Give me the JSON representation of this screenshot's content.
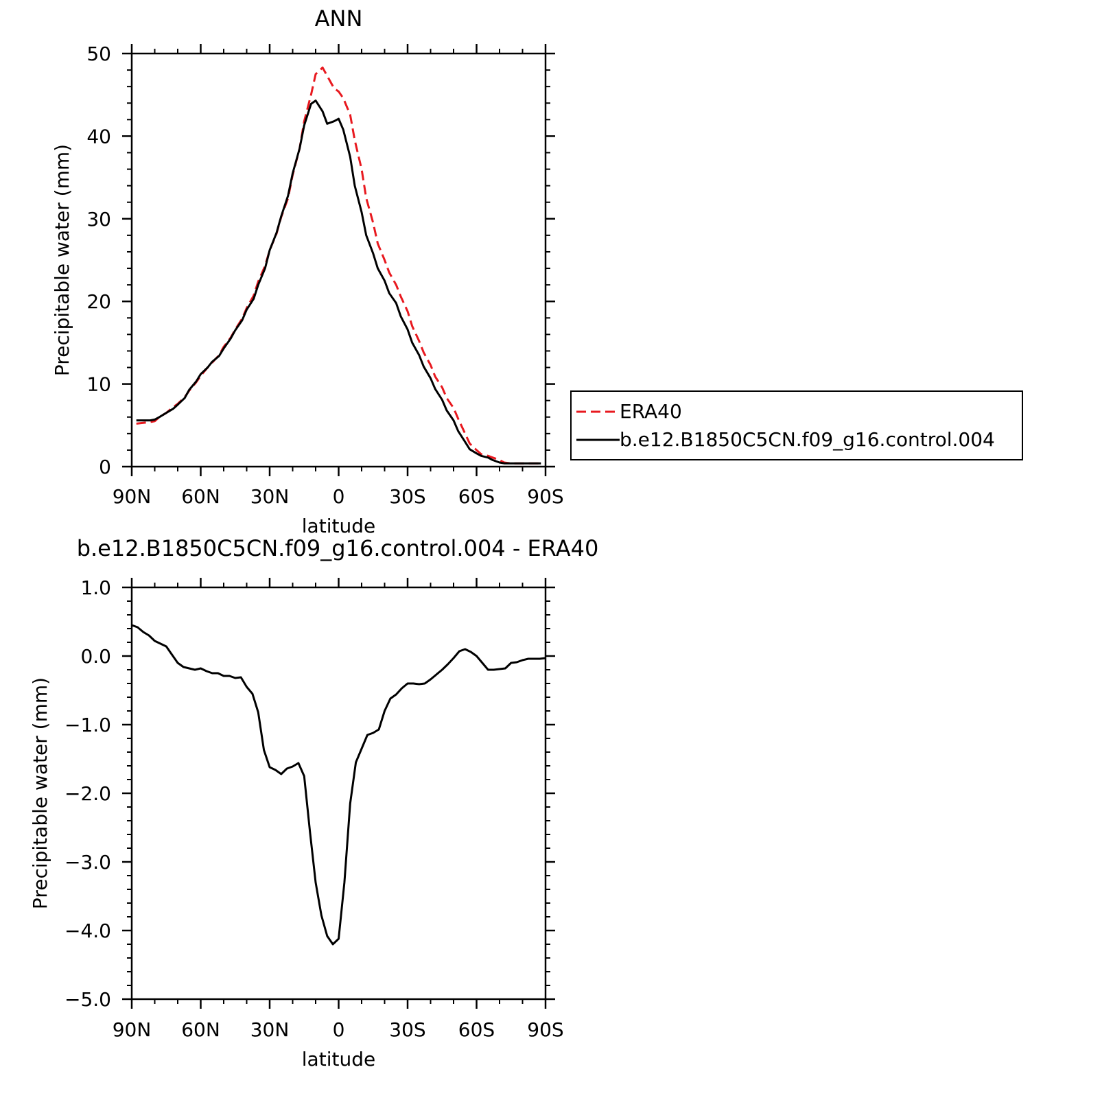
{
  "chart_data": [
    {
      "type": "line",
      "title": "ANN",
      "xlabel": "latitude",
      "ylabel": "Precipitable water (mm)",
      "xlim": [
        90,
        -90
      ],
      "ylim": [
        0,
        50
      ],
      "x_ticks": [
        90,
        60,
        30,
        0,
        -30,
        -60,
        -90
      ],
      "x_tick_labels": [
        "90N",
        "60N",
        "30N",
        "0",
        "30S",
        "60S",
        "90S"
      ],
      "y_ticks": [
        0,
        10,
        20,
        30,
        40,
        50
      ],
      "y_tick_labels": [
        "0",
        "10",
        "20",
        "30",
        "40",
        "50"
      ],
      "legend_position": "right",
      "series": [
        {
          "name": "ERA40",
          "color": "#e8191f",
          "dash": "dashed",
          "x": [
            88,
            85,
            82,
            80,
            78,
            75,
            72,
            70,
            67,
            65,
            62,
            60,
            57,
            55,
            52,
            50,
            47,
            45,
            42,
            40,
            37,
            35,
            32,
            30,
            27,
            25,
            22,
            20,
            17,
            15,
            12,
            10,
            7,
            5,
            2,
            0,
            -2,
            -5,
            -7,
            -10,
            -12,
            -15,
            -17,
            -20,
            -22,
            -25,
            -27,
            -30,
            -32,
            -35,
            -37,
            -40,
            -42,
            -45,
            -47,
            -50,
            -52,
            -55,
            -57,
            -60,
            -62,
            -65,
            -67,
            -70,
            -72,
            -75,
            -77,
            -80,
            -82,
            -85,
            -88
          ],
          "values": [
            5.2,
            5.3,
            5.4,
            5.5,
            6.0,
            6.5,
            7.2,
            7.6,
            8.4,
            9.2,
            10.2,
            11.0,
            12.0,
            12.6,
            13.5,
            14.5,
            15.6,
            16.6,
            17.9,
            19.2,
            20.7,
            22.4,
            24.3,
            26.2,
            28.2,
            30.2,
            32.5,
            35.3,
            38.5,
            41.8,
            45.0,
            47.5,
            48.3,
            47.3,
            45.8,
            45.4,
            44.6,
            42.6,
            39.5,
            36.0,
            32.5,
            29.5,
            27.0,
            25.0,
            23.5,
            22.0,
            20.6,
            18.8,
            17.0,
            15.2,
            13.8,
            12.3,
            10.9,
            9.6,
            8.3,
            7.1,
            5.8,
            4.0,
            2.8,
            2.0,
            1.5,
            1.3,
            1.1,
            0.8,
            0.5,
            0.4,
            0.4,
            0.4,
            0.4,
            0.4,
            0.4
          ]
        },
        {
          "name": "b.e12.B1850C5CN.f09_g16.control.004",
          "color": "#000000",
          "dash": "solid",
          "x": [
            88,
            85,
            82,
            80,
            78,
            75,
            72,
            70,
            67,
            65,
            62,
            60,
            57,
            55,
            52,
            50,
            47,
            45,
            42,
            40,
            37,
            35,
            32,
            30,
            27,
            25,
            22,
            20,
            17,
            15,
            12,
            10,
            7,
            5,
            2,
            0,
            -2,
            -5,
            -7,
            -10,
            -12,
            -15,
            -17,
            -20,
            -22,
            -25,
            -27,
            -30,
            -32,
            -35,
            -37,
            -40,
            -42,
            -45,
            -47,
            -50,
            -52,
            -55,
            -57,
            -60,
            -62,
            -65,
            -67,
            -70,
            -72,
            -75,
            -77,
            -80,
            -82,
            -85,
            -88
          ],
          "values": [
            5.6,
            5.6,
            5.6,
            5.7,
            6.0,
            6.5,
            7.0,
            7.5,
            8.3,
            9.3,
            10.3,
            11.2,
            12.0,
            12.7,
            13.4,
            14.3,
            15.5,
            16.5,
            17.7,
            19.0,
            20.3,
            22.0,
            24.0,
            26.2,
            28.3,
            30.3,
            32.8,
            35.5,
            38.5,
            41.3,
            43.9,
            44.3,
            43.0,
            41.5,
            41.8,
            42.1,
            40.8,
            37.5,
            34.0,
            30.8,
            28.0,
            25.8,
            24.0,
            22.5,
            21.0,
            19.8,
            18.2,
            16.6,
            15.0,
            13.5,
            12.1,
            10.7,
            9.4,
            8.1,
            6.8,
            5.6,
            4.3,
            3.0,
            2.1,
            1.6,
            1.3,
            1.1,
            0.8,
            0.5,
            0.4,
            0.4,
            0.4,
            0.4,
            0.4,
            0.4,
            0.4
          ]
        }
      ]
    },
    {
      "type": "line",
      "title": "b.e12.B1850C5CN.f09_g16.control.004 - ERA40",
      "xlabel": "latitude",
      "ylabel": "Precipitable water (mm)",
      "xlim": [
        90,
        -90
      ],
      "ylim": [
        -5,
        1
      ],
      "x_ticks": [
        90,
        60,
        30,
        0,
        -30,
        -60,
        -90
      ],
      "x_tick_labels": [
        "90N",
        "60N",
        "30N",
        "0",
        "30S",
        "60S",
        "90S"
      ],
      "y_ticks": [
        1,
        0,
        -1,
        -2,
        -3,
        -4,
        -5
      ],
      "y_tick_labels": [
        "1.0",
        "0.0",
        "−1.0",
        "−2.0",
        "−3.0",
        "−4.0",
        "−5.0"
      ],
      "series": [
        {
          "name": "",
          "color": "#000000",
          "dash": "solid",
          "x": [
            90,
            87.5,
            85,
            82.5,
            80,
            77.5,
            75,
            72.5,
            70,
            67.5,
            65,
            62.5,
            60,
            57.5,
            55,
            52.5,
            50,
            47.5,
            45,
            42.5,
            40,
            37.5,
            35,
            32.5,
            30,
            27.5,
            25,
            22.5,
            20,
            17.5,
            15,
            12.5,
            10,
            7.5,
            5,
            2.5,
            0,
            -2.5,
            -5,
            -7.5,
            -10,
            -12.5,
            -15,
            -17.5,
            -20,
            -22.5,
            -25,
            -27.5,
            -30,
            -32.5,
            -35,
            -37.5,
            -40,
            -42.5,
            -45,
            -47.5,
            -50,
            -52.5,
            -55,
            -57.5,
            -60,
            -62.5,
            -65,
            -67.5,
            -70,
            -72.5,
            -75,
            -77.5,
            -80,
            -82.5,
            -85,
            -87.5,
            -90
          ],
          "values": [
            0.45,
            0.42,
            0.35,
            0.3,
            0.22,
            0.18,
            0.14,
            0.02,
            -0.1,
            -0.16,
            -0.18,
            -0.2,
            -0.18,
            -0.22,
            -0.25,
            -0.25,
            -0.29,
            -0.29,
            -0.32,
            -0.31,
            -0.45,
            -0.55,
            -0.82,
            -1.37,
            -1.62,
            -1.66,
            -1.72,
            -1.64,
            -1.61,
            -1.56,
            -1.75,
            -2.55,
            -3.3,
            -3.78,
            -4.08,
            -4.2,
            -4.12,
            -3.3,
            -2.15,
            -1.55,
            -1.35,
            -1.15,
            -1.12,
            -1.07,
            -0.8,
            -0.62,
            -0.56,
            -0.47,
            -0.4,
            -0.4,
            -0.41,
            -0.4,
            -0.34,
            -0.27,
            -0.2,
            -0.12,
            -0.03,
            0.07,
            0.1,
            0.06,
            0.0,
            -0.1,
            -0.2,
            -0.2,
            -0.19,
            -0.18,
            -0.1,
            -0.09,
            -0.06,
            -0.04,
            -0.04,
            -0.04,
            -0.03
          ]
        }
      ]
    }
  ]
}
